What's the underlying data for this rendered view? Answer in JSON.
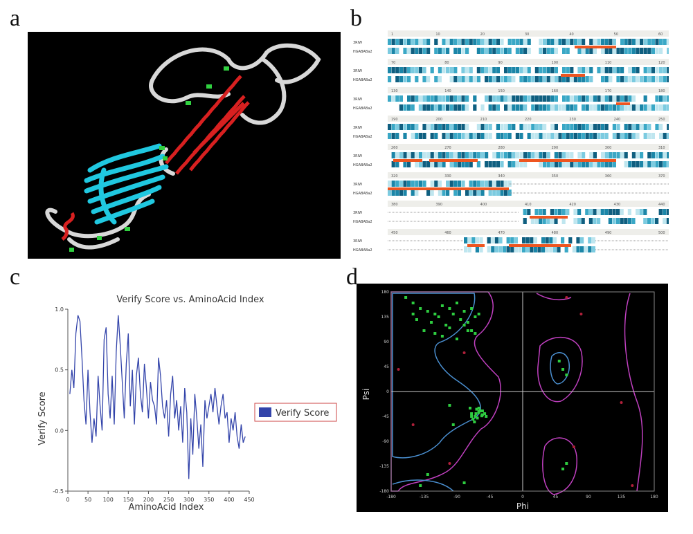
{
  "panels": {
    "a": {
      "letter": "a"
    },
    "b": {
      "letter": "b",
      "row_labels": [
        "3RIW",
        "HGABABa2"
      ],
      "blocks": [
        {
          "ticks": [
            "1",
            "10",
            "20",
            "30",
            "40",
            "50",
            "60"
          ]
        },
        {
          "ticks": [
            "70",
            "80",
            "90",
            "100",
            "110",
            "120"
          ]
        },
        {
          "ticks": [
            "130",
            "140",
            "150",
            "160",
            "170",
            "180"
          ]
        },
        {
          "ticks": [
            "190",
            "200",
            "210",
            "220",
            "230",
            "240",
            "250"
          ]
        },
        {
          "ticks": [
            "260",
            "270",
            "280",
            "290",
            "300",
            "310"
          ]
        },
        {
          "ticks": [
            "320",
            "330",
            "340",
            "350",
            "360",
            "370"
          ]
        },
        {
          "ticks": [
            "380",
            "390",
            "400",
            "410",
            "420",
            "430",
            "440"
          ]
        },
        {
          "ticks": [
            "450",
            "460",
            "470",
            "480",
            "490",
            "500"
          ]
        }
      ]
    },
    "c": {
      "letter": "c"
    },
    "d": {
      "letter": "d"
    }
  },
  "chart_data": [
    {
      "type": "line",
      "title": "Verify Score vs. AminoAcid Index",
      "xlabel": "AminoAcid Index",
      "ylabel": "Verify Score",
      "xlim": [
        0,
        450
      ],
      "ylim": [
        -0.5,
        1.0
      ],
      "xticks": [
        "0",
        "50",
        "100",
        "150",
        "200",
        "250",
        "300",
        "350",
        "400",
        "450"
      ],
      "yticks": [
        "-0.5",
        "0.0",
        "0.5",
        "1.0"
      ],
      "legend": {
        "position": "right",
        "entries": [
          "Verify Score"
        ]
      },
      "colors": {
        "line": "#3344aa"
      },
      "series": [
        {
          "name": "Verify Score",
          "x": [
            5,
            10,
            15,
            20,
            25,
            30,
            35,
            40,
            45,
            50,
            55,
            60,
            65,
            70,
            75,
            80,
            85,
            90,
            95,
            100,
            105,
            110,
            115,
            120,
            125,
            130,
            135,
            140,
            145,
            150,
            155,
            160,
            165,
            170,
            175,
            180,
            185,
            190,
            195,
            200,
            205,
            210,
            215,
            220,
            225,
            230,
            235,
            240,
            245,
            250,
            255,
            260,
            265,
            270,
            275,
            280,
            285,
            290,
            295,
            300,
            305,
            310,
            315,
            320,
            325,
            330,
            335,
            340,
            345,
            350,
            355,
            360,
            365,
            370,
            375,
            380,
            385,
            390,
            395,
            400,
            405,
            410,
            415,
            420,
            425,
            430,
            435,
            440
          ],
          "y": [
            0.3,
            0.5,
            0.35,
            0.8,
            0.95,
            0.9,
            0.6,
            0.25,
            0.05,
            0.5,
            0.15,
            -0.1,
            0.1,
            -0.05,
            0.45,
            0.2,
            0.0,
            0.75,
            0.85,
            0.3,
            0.1,
            0.45,
            0.05,
            0.65,
            0.95,
            0.7,
            0.4,
            0.1,
            0.55,
            0.8,
            0.2,
            0.5,
            0.05,
            0.45,
            0.6,
            0.3,
            0.15,
            0.55,
            0.35,
            0.1,
            0.4,
            0.25,
            0.2,
            0.05,
            0.6,
            0.45,
            0.2,
            0.1,
            0.25,
            -0.05,
            0.3,
            0.45,
            0.1,
            0.25,
            0.0,
            0.2,
            -0.1,
            0.35,
            0.15,
            -0.4,
            0.1,
            -0.2,
            0.3,
            0.1,
            -0.15,
            0.05,
            -0.3,
            0.25,
            0.1,
            0.2,
            0.3,
            0.15,
            0.35,
            0.2,
            0.05,
            0.2,
            0.3,
            0.1,
            0.15,
            -0.1,
            0.1,
            0.0,
            0.15,
            -0.05,
            -0.15,
            0.05,
            -0.1,
            -0.05
          ]
        }
      ]
    },
    {
      "type": "scatter",
      "xlabel": "Phi",
      "ylabel": "Psi",
      "xlim": [
        -180,
        180
      ],
      "ylim": [
        -180,
        180
      ],
      "xticks": [
        "-180",
        "-135",
        "-90",
        "-45",
        "0",
        "45",
        "90",
        "135",
        "180"
      ],
      "yticks": [
        "180",
        "135",
        "90",
        "45",
        "0",
        "-45",
        "-90",
        "-135",
        "-180"
      ],
      "colors": {
        "points": "#2ecc40",
        "outliers": "#b0203a",
        "core": "#4a8fd0",
        "allowed": "#c040c0",
        "background": "#000000"
      },
      "series": [
        {
          "name": "residues",
          "x": [
            -150,
            -140,
            -130,
            -120,
            -110,
            -100,
            -90,
            -80,
            -70,
            -60,
            -145,
            -125,
            -115,
            -105,
            -95,
            -85,
            -75,
            -65,
            -135,
            -120,
            -100,
            -80,
            -70,
            -160,
            -150,
            -110,
            -90,
            -75,
            -65,
            -60,
            -55,
            -70,
            -65,
            -60,
            -55,
            -50,
            -68,
            -62,
            -58,
            -72,
            -66,
            -64,
            -60,
            -56,
            -52,
            -70,
            -63,
            -100,
            -95,
            50,
            55,
            60,
            60,
            55,
            -130,
            -140,
            -80
          ],
          "y": [
            160,
            150,
            145,
            140,
            155,
            150,
            160,
            145,
            150,
            140,
            130,
            125,
            135,
            120,
            140,
            130,
            125,
            135,
            110,
            105,
            115,
            120,
            110,
            170,
            140,
            100,
            95,
            110,
            105,
            -30,
            -35,
            -40,
            -45,
            -38,
            -42,
            -45,
            -50,
            -48,
            -35,
            -30,
            -55,
            -40,
            -36,
            -44,
            -40,
            -45,
            -32,
            -25,
            -60,
            55,
            40,
            30,
            -130,
            -140,
            -150,
            -170,
            -165
          ]
        },
        {
          "name": "outliers",
          "x": [
            -80,
            -100,
            60,
            80,
            135,
            150,
            -170,
            70,
            -150
          ],
          "y": [
            70,
            -130,
            170,
            140,
            -20,
            -170,
            40,
            -100,
            -60
          ]
        }
      ]
    }
  ]
}
